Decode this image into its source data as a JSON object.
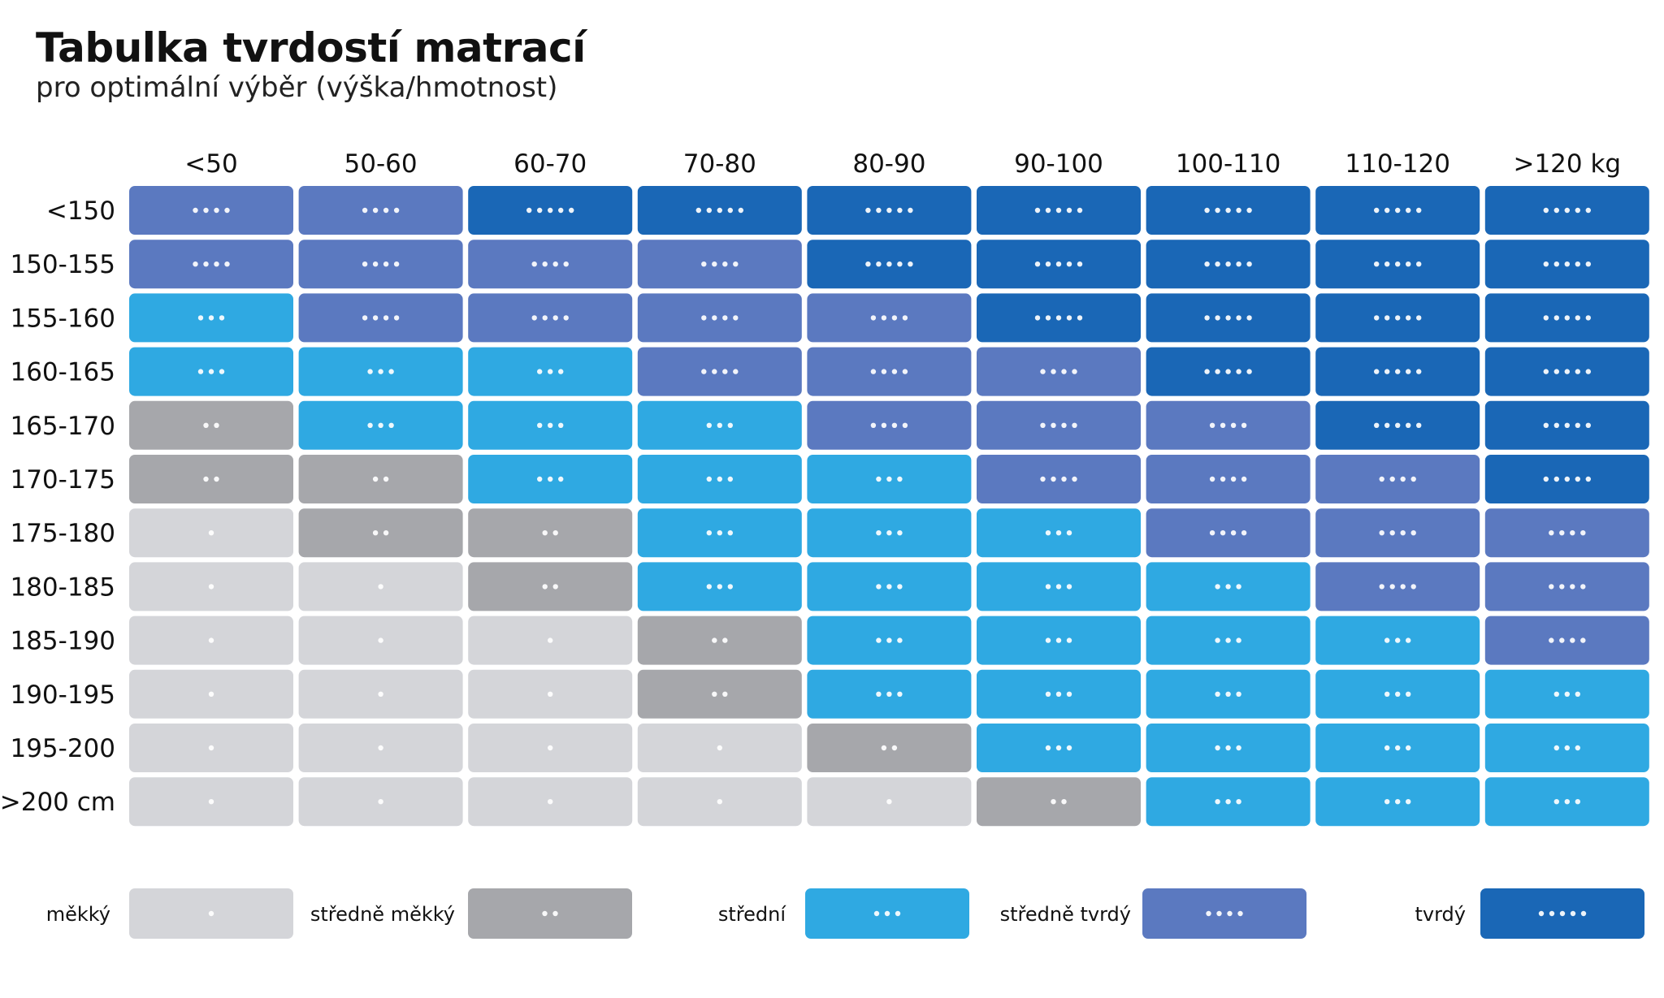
{
  "title": "Tabulka tvrdostí matrací",
  "subtitle": "pro optimální výběr (výška/hmotnost)",
  "chart_data": {
    "type": "heatmap",
    "x_categories": [
      "<50",
      "50-60",
      "60-70",
      "70-80",
      "80-90",
      "90-100",
      "100-110",
      "110-120",
      ">120 kg"
    ],
    "y_categories": [
      "<150",
      "150-155",
      "155-160",
      "160-165",
      "165-170",
      "170-175",
      "175-180",
      "180-185",
      "185-190",
      "190-195",
      "195-200",
      ">200 cm"
    ],
    "values": [
      [
        4,
        4,
        5,
        5,
        5,
        5,
        5,
        5,
        5
      ],
      [
        4,
        4,
        4,
        4,
        5,
        5,
        5,
        5,
        5
      ],
      [
        3,
        4,
        4,
        4,
        4,
        5,
        5,
        5,
        5
      ],
      [
        3,
        3,
        3,
        4,
        4,
        4,
        5,
        5,
        5
      ],
      [
        2,
        3,
        3,
        3,
        4,
        4,
        4,
        5,
        5
      ],
      [
        2,
        2,
        3,
        3,
        3,
        4,
        4,
        4,
        5
      ],
      [
        1,
        2,
        2,
        3,
        3,
        3,
        4,
        4,
        4
      ],
      [
        1,
        1,
        2,
        3,
        3,
        3,
        3,
        4,
        4
      ],
      [
        1,
        1,
        1,
        2,
        3,
        3,
        3,
        3,
        4
      ],
      [
        1,
        1,
        1,
        2,
        3,
        3,
        3,
        3,
        3
      ],
      [
        1,
        1,
        1,
        1,
        2,
        3,
        3,
        3,
        3
      ],
      [
        1,
        1,
        1,
        1,
        1,
        2,
        3,
        3,
        3
      ]
    ],
    "levels": [
      {
        "value": 1,
        "label": "měkký",
        "color": "#d4d5d9"
      },
      {
        "value": 2,
        "label": "středně měkký",
        "color": "#a6a7ab"
      },
      {
        "value": 3,
        "label": "střední",
        "color": "#2fa9e2"
      },
      {
        "value": 4,
        "label": "středně tvrdý",
        "color": "#5b79c0"
      },
      {
        "value": 5,
        "label": "tvrdý",
        "color": "#1a67b6"
      }
    ],
    "legend_position": "bottom"
  }
}
